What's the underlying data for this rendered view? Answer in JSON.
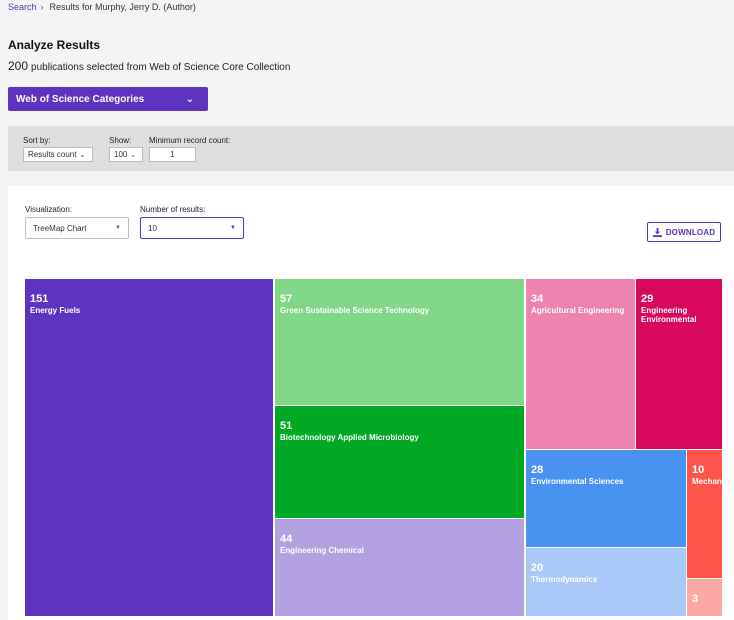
{
  "breadcrumb": {
    "search": "Search",
    "sep": "›",
    "current": "Results for Murphy, Jerry D. (Author)"
  },
  "header": {
    "title": "Analyze Results",
    "count": "200",
    "subtitle_rest": "publications selected from Web of Science Core Collection",
    "category_select": "Web of Science Categories"
  },
  "filters": {
    "sort_label": "Sort by:",
    "sort_value": "Results count",
    "show_label": "Show:",
    "show_value": "100",
    "min_label": "Minimum record count:",
    "min_value": "1"
  },
  "panel": {
    "viz_label": "Visualization:",
    "viz_value": "TreeMap Chart",
    "results_label": "Number of results:",
    "results_value": "10",
    "download": "DOWNLOAD"
  },
  "chart_data": {
    "type": "treemap",
    "items": [
      {
        "value": 151,
        "label": "Energy Fuels",
        "color": "#5e33bf"
      },
      {
        "value": 57,
        "label": "Green Sustainable Science Technology",
        "color": "#82d787"
      },
      {
        "value": 51,
        "label": "Biotechnology Applied Microbiology",
        "color": "#00a824"
      },
      {
        "value": 44,
        "label": "Engineering Chemical",
        "color": "#b3a0e0"
      },
      {
        "value": 34,
        "label": "Agricultural Engineering",
        "color": "#ee83b0"
      },
      {
        "value": 29,
        "label": "Engineering Environmental",
        "color": "#d8085c"
      },
      {
        "value": 28,
        "label": "Environmental Sciences",
        "color": "#4a92ef"
      },
      {
        "value": 20,
        "label": "Thermodynamics",
        "color": "#a8c8f7"
      },
      {
        "value": 10,
        "label": "Mechan",
        "color": "#ff5449"
      },
      {
        "value": 3,
        "label": "",
        "color": "#fda8a2"
      }
    ]
  }
}
